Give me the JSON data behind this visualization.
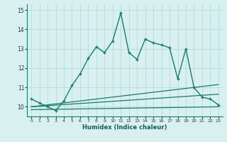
{
  "xlabel": "Humidex (Indice chaleur)",
  "background_color": "#d8f0f0",
  "grid_color": "#b8dede",
  "line_color": "#1a7a6e",
  "xlim": [
    -0.5,
    23.5
  ],
  "ylim": [
    9.5,
    15.3
  ],
  "yticks": [
    10,
    11,
    12,
    13,
    14,
    15
  ],
  "xticks": [
    0,
    1,
    2,
    3,
    4,
    5,
    6,
    7,
    8,
    9,
    10,
    11,
    12,
    13,
    14,
    15,
    16,
    17,
    18,
    19,
    20,
    21,
    22,
    23
  ],
  "main_x": [
    0,
    1,
    2,
    3,
    4,
    5,
    6,
    7,
    8,
    9,
    10,
    11,
    12,
    13,
    14,
    15,
    16,
    17,
    18,
    19,
    20,
    21,
    22,
    23
  ],
  "main_y": [
    10.4,
    10.2,
    10.0,
    9.8,
    10.3,
    11.1,
    11.7,
    12.5,
    13.1,
    12.8,
    13.4,
    14.85,
    12.8,
    12.45,
    13.5,
    13.3,
    13.2,
    13.05,
    11.45,
    13.0,
    11.0,
    10.5,
    10.4,
    10.1
  ],
  "line1_x": [
    0,
    23
  ],
  "line1_y": [
    10.0,
    11.15
  ],
  "line2_x": [
    0,
    23
  ],
  "line2_y": [
    10.0,
    10.65
  ],
  "line3_x": [
    0,
    23
  ],
  "line3_y": [
    9.85,
    10.0
  ]
}
